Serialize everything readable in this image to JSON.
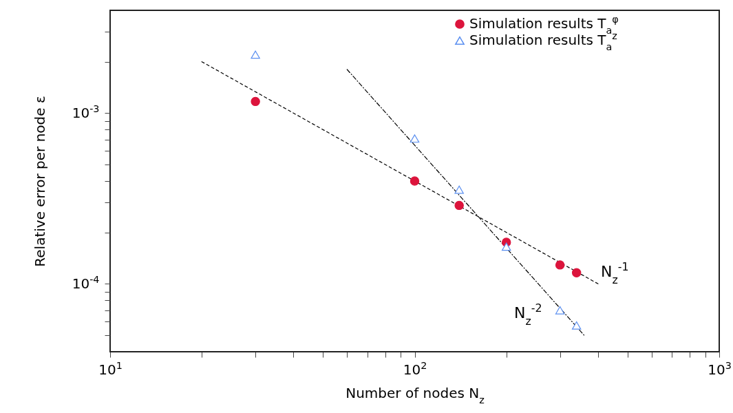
{
  "chart_data": {
    "type": "scatter",
    "xlabel": "Number of nodes N$_{z}$",
    "ylabel": "Relative error per node ε",
    "log": "xy",
    "grid": false,
    "legend": "top right",
    "xlim": [
      10,
      1000
    ],
    "ylim": [
      4e-05,
      0.004
    ],
    "xticks": [
      {
        "value": 10,
        "label": "10$^{1}$"
      },
      {
        "value": 20,
        "label": null
      },
      {
        "value": 30,
        "label": null
      },
      {
        "value": 40,
        "label": null
      },
      {
        "value": 50,
        "label": null
      },
      {
        "value": 60,
        "label": null
      },
      {
        "value": 70,
        "label": null
      },
      {
        "value": 80,
        "label": null
      },
      {
        "value": 90,
        "label": null
      },
      {
        "value": 100,
        "label": "10$^{2}$"
      },
      {
        "value": 200,
        "label": null
      },
      {
        "value": 300,
        "label": null
      },
      {
        "value": 400,
        "label": null
      },
      {
        "value": 500,
        "label": null
      },
      {
        "value": 600,
        "label": null
      },
      {
        "value": 700,
        "label": null
      },
      {
        "value": 800,
        "label": null
      },
      {
        "value": 900,
        "label": null
      },
      {
        "value": 1000,
        "label": "10$^{3}$"
      }
    ],
    "yticks": [
      {
        "value": 5e-05,
        "label": null
      },
      {
        "value": 6e-05,
        "label": null
      },
      {
        "value": 7e-05,
        "label": null
      },
      {
        "value": 8e-05,
        "label": null
      },
      {
        "value": 9e-05,
        "label": null
      },
      {
        "value": 0.0001,
        "label": "10$^{-4}$"
      },
      {
        "value": 0.0002,
        "label": null
      },
      {
        "value": 0.0003,
        "label": null
      },
      {
        "value": 0.0004,
        "label": null
      },
      {
        "value": 0.0005,
        "label": null
      },
      {
        "value": 0.0006,
        "label": null
      },
      {
        "value": 0.0007,
        "label": null
      },
      {
        "value": 0.0008,
        "label": null
      },
      {
        "value": 0.0009,
        "label": null
      },
      {
        "value": 0.001,
        "label": "10$^{-3}$"
      },
      {
        "value": 0.002,
        "label": null
      },
      {
        "value": 0.003,
        "label": null
      }
    ],
    "x": [
      30,
      100,
      140,
      200,
      300,
      340
    ],
    "series": [
      {
        "name": "Simulation results T$_{a}$$^{φ}$",
        "color": "#dc143c",
        "marker": "circle",
        "values": [
          0.00117,
          0.0004,
          0.000288,
          0.000175,
          0.000129,
          0.000116
        ]
      },
      {
        "name": "Simulation results T$_{a}$$^{z}$",
        "color": "#5b8ff0",
        "marker": "triangle",
        "values": [
          0.0022,
          0.00071,
          0.000356,
          0.000165,
          7e-05,
          5.7e-05
        ]
      },
      {
        "type": "line",
        "color": "#000000",
        "line_style": "dashed",
        "x": [
          20,
          400
        ],
        "values": [
          0.002,
          0.0001
        ]
      },
      {
        "type": "line",
        "color": "#000000",
        "line_style": "dashdot",
        "x": [
          60,
          360
        ],
        "values": [
          0.0018,
          5e-05
        ]
      }
    ],
    "annotations": [
      "N$_{z}$$^{-1}$",
      "N$_{z}$$^{-2}$"
    ]
  }
}
